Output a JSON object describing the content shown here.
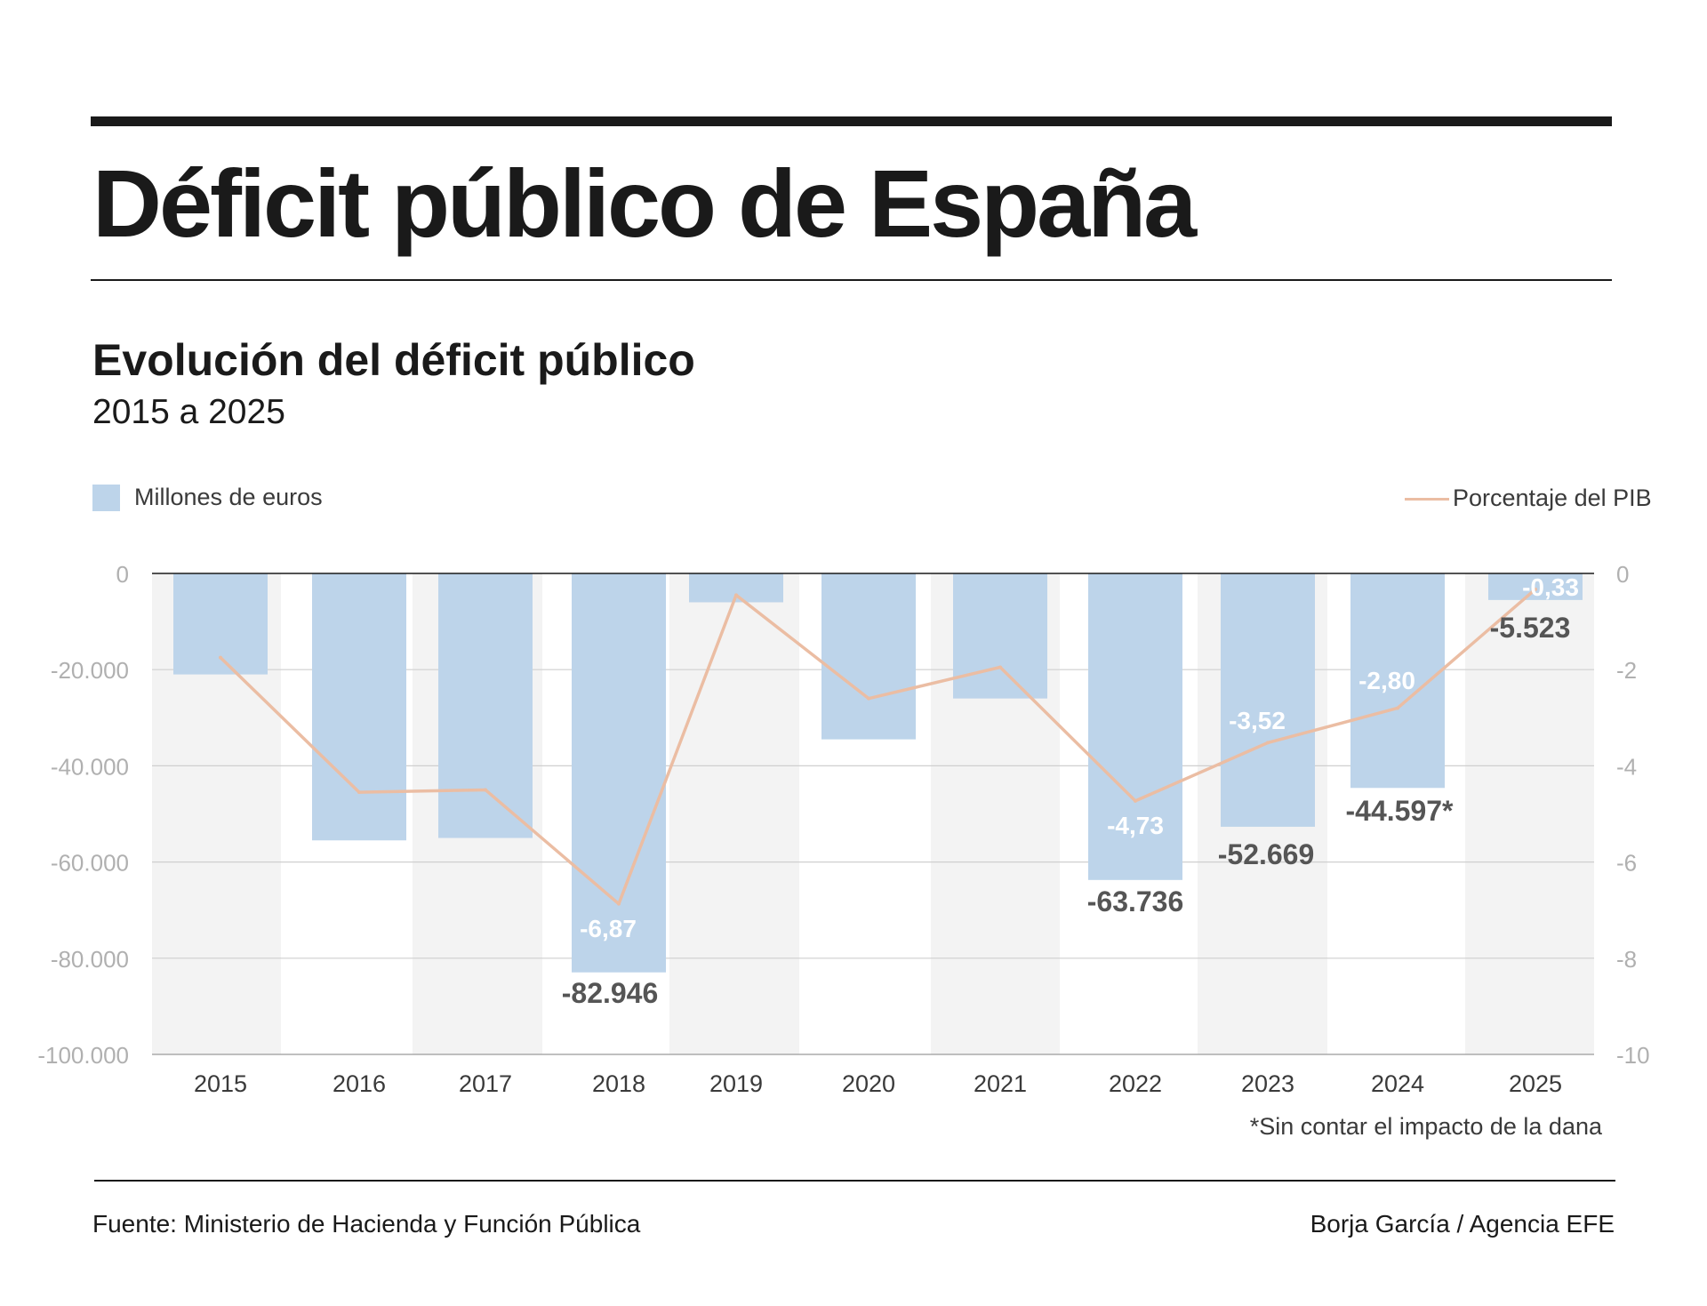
{
  "header": {
    "title": "Déficit público de España",
    "subtitle": "Evolución del déficit público",
    "period": "2015 a 2025"
  },
  "legend": {
    "bars_label": "Millones de euros",
    "line_label": "Porcentaje del PIB"
  },
  "footnote": "*Sin contar el impacto de la dana",
  "footer": {
    "source": "Fuente: Ministerio de Hacienda y Función Pública",
    "credit": "Borja García / Agencia EFE"
  },
  "colors": {
    "bar": "#bdd4ea",
    "line": "#ebbda3",
    "band": "#f3f3f3",
    "axis_label": "#b0b0b0",
    "value_label": "#555555",
    "pct_label": "#ffffff"
  },
  "chart_data": {
    "type": "bar",
    "categories": [
      "2015",
      "2016",
      "2017",
      "2018",
      "2019",
      "2020",
      "2021",
      "2022",
      "2023",
      "2024",
      "2025"
    ],
    "series": [
      {
        "name": "Millones de euros",
        "type": "bar",
        "axis": "left",
        "values": [
          -21000,
          -55500,
          -55000,
          -82946,
          -6000,
          -34500,
          -26000,
          -63736,
          -52669,
          -44597,
          -5523
        ],
        "labels": [
          "",
          "",
          "",
          "-82.946",
          "",
          "",
          "",
          "-63.736",
          "-52.669",
          "-44.597*",
          "-5.523"
        ]
      },
      {
        "name": "Porcentaje del PIB",
        "type": "line",
        "axis": "right",
        "values": [
          -1.75,
          -4.55,
          -4.5,
          -6.87,
          -0.45,
          -2.6,
          -1.95,
          -4.73,
          -3.52,
          -2.8,
          -0.33
        ],
        "labels": [
          "",
          "",
          "",
          "-6,87",
          "",
          "",
          "",
          "-4,73",
          "-3,52",
          "-2,80",
          "-0,33"
        ]
      }
    ],
    "y_left": {
      "ylim": [
        -100000,
        0
      ],
      "ticks": [
        0,
        -20000,
        -40000,
        -60000,
        -80000,
        -100000
      ],
      "tick_labels": [
        "0",
        "-20.000",
        "-40.000",
        "-60.000",
        "-80.000",
        "-100.000"
      ]
    },
    "y_right": {
      "ylim": [
        -10,
        0
      ],
      "ticks": [
        0,
        -2,
        -4,
        -6,
        -8,
        -10
      ],
      "tick_labels": [
        "0",
        "-2",
        "-4",
        "-6",
        "-8",
        "-10"
      ]
    },
    "grid": true,
    "alternating_bands": true,
    "legend_position": "top"
  }
}
